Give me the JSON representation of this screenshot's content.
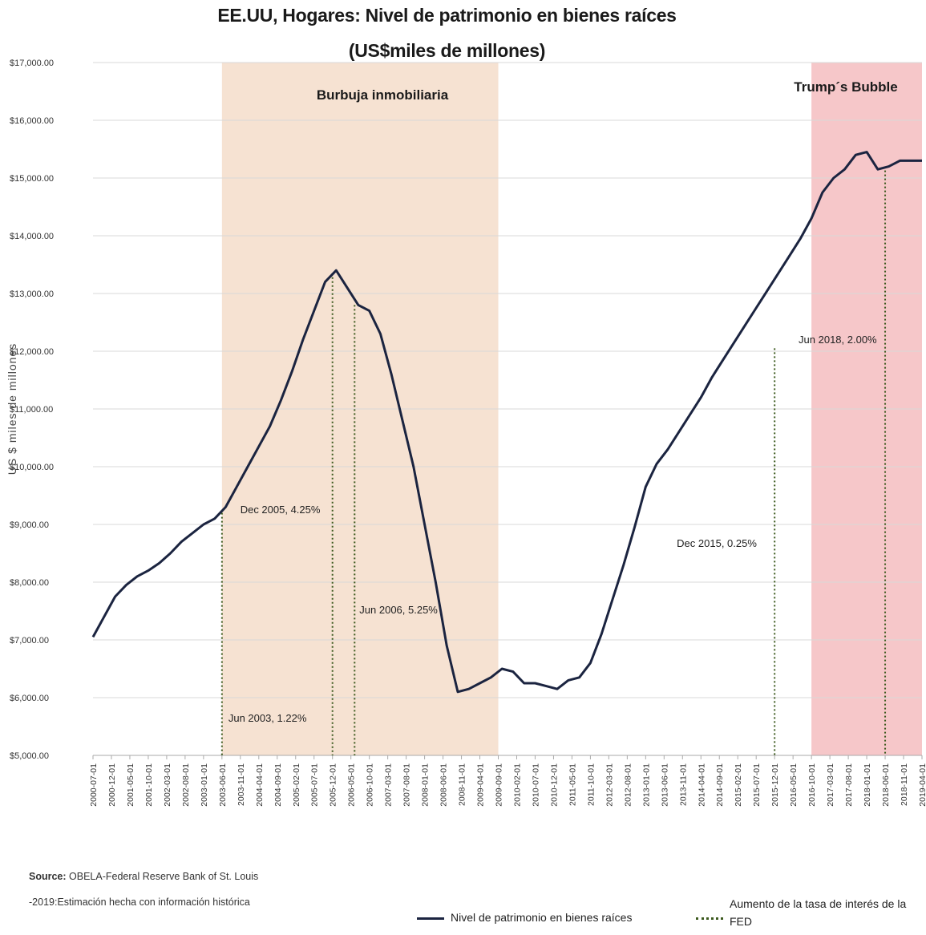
{
  "chart_data": {
    "type": "line",
    "title": "EE.UU, Hogares:  Nivel de patrimonio  en bienes raíces",
    "subtitle": "(US$miles de millones)",
    "ylabel": "US $ miles de millones",
    "ylim": [
      5000,
      17000
    ],
    "yticks": [
      "$5,000.00",
      "$6,000.00",
      "$7,000.00",
      "$8,000.00",
      "$9,000.00",
      "$10,000.00",
      "$11,000.00",
      "$12,000.00",
      "$13,000.00",
      "$14,000.00",
      "$15,000.00",
      "$16,000.00",
      "$17,000.00"
    ],
    "ytick_values": [
      5000,
      6000,
      7000,
      8000,
      9000,
      10000,
      11000,
      12000,
      13000,
      14000,
      15000,
      16000,
      17000
    ],
    "xticks": [
      "2000-07-01",
      "2000-12-01",
      "2001-05-01",
      "2001-10-01",
      "2002-03-01",
      "2002-08-01",
      "2003-01-01",
      "2003-06-01",
      "2003-11-01",
      "2004-04-01",
      "2004-09-01",
      "2005-02-01",
      "2005-07-01",
      "2005-12-01",
      "2006-05-01",
      "2006-10-01",
      "2007-03-01",
      "2007-08-01",
      "2008-01-01",
      "2008-06-01",
      "2008-11-01",
      "2009-04-01",
      "2009-09-01",
      "2010-02-01",
      "2010-07-01",
      "2010-12-01",
      "2011-05-01",
      "2011-10-01",
      "2012-03-01",
      "2012-08-01",
      "2013-01-01",
      "2013-06-01",
      "2013-11-01",
      "2014-04-01",
      "2014-09-01",
      "2015-02-01",
      "2015-07-01",
      "2015-12-01",
      "2016-05-01",
      "2016-10-01",
      "2017-03-01",
      "2017-08-01",
      "2018-01-01",
      "2018-06-01",
      "2018-11-01",
      "2019-04-01"
    ],
    "grid": true,
    "shaded_regions": [
      {
        "label": "Burbuja inmobiliaria",
        "start": "2003-06-01",
        "end": "2009-09-01",
        "color": "#f6e2d2"
      },
      {
        "label": "Trump´s Bubble",
        "start": "2016-10-01",
        "end": "2019-04-01",
        "color": "#f6c7c9"
      }
    ],
    "series": [
      {
        "name": "Nivel de patrimonio en bienes raíces",
        "color": "#1b2440",
        "x": [
          "2000-07-01",
          "2000-10-01",
          "2001-01-01",
          "2001-04-01",
          "2001-07-01",
          "2001-10-01",
          "2002-01-01",
          "2002-04-01",
          "2002-07-01",
          "2002-10-01",
          "2003-01-01",
          "2003-04-01",
          "2003-07-01",
          "2003-10-01",
          "2004-01-01",
          "2004-04-01",
          "2004-07-01",
          "2004-10-01",
          "2005-01-01",
          "2005-04-01",
          "2005-07-01",
          "2005-10-01",
          "2006-01-01",
          "2006-04-01",
          "2006-07-01",
          "2006-10-01",
          "2007-01-01",
          "2007-04-01",
          "2007-07-01",
          "2007-10-01",
          "2008-01-01",
          "2008-04-01",
          "2008-07-01",
          "2008-10-01",
          "2009-01-01",
          "2009-04-01",
          "2009-07-01",
          "2009-10-01",
          "2010-01-01",
          "2010-04-01",
          "2010-07-01",
          "2010-10-01",
          "2011-01-01",
          "2011-04-01",
          "2011-07-01",
          "2011-10-01",
          "2012-01-01",
          "2012-04-01",
          "2012-07-01",
          "2012-10-01",
          "2013-01-01",
          "2013-04-01",
          "2013-07-01",
          "2013-10-01",
          "2014-01-01",
          "2014-04-01",
          "2014-07-01",
          "2014-10-01",
          "2015-01-01",
          "2015-04-01",
          "2015-07-01",
          "2015-10-01",
          "2016-01-01",
          "2016-04-01",
          "2016-07-01",
          "2016-10-01",
          "2017-01-01",
          "2017-04-01",
          "2017-07-01",
          "2017-10-01",
          "2018-01-01",
          "2018-04-01",
          "2018-07-01",
          "2018-10-01",
          "2019-01-01",
          "2019-04-01"
        ],
        "values": [
          7050,
          7400,
          7750,
          7950,
          8100,
          8200,
          8330,
          8500,
          8700,
          8850,
          9000,
          9100,
          9300,
          9650,
          10000,
          10350,
          10700,
          11150,
          11650,
          12200,
          12700,
          13200,
          13400,
          13100,
          12800,
          12700,
          12300,
          11600,
          10800,
          10000,
          9000,
          8000,
          6900,
          6100,
          6150,
          6250,
          6350,
          6500,
          6450,
          6250,
          6250,
          6200,
          6150,
          6300,
          6350,
          6600,
          7100,
          7700,
          8300,
          8950,
          9650,
          10050,
          10300,
          10600,
          10900,
          11200,
          11550,
          11850,
          12150,
          12450,
          12750,
          13050,
          13350,
          13650,
          13950,
          14300,
          14750,
          15000,
          15150,
          15400,
          15450,
          15150,
          15200,
          15300,
          15300,
          15300
        ]
      }
    ],
    "fed_hikes": [
      {
        "label": "Jun 2003, 1.22%",
        "date": "2003-06-01",
        "value": 9200
      },
      {
        "label": "Dec 2005, 4.25%",
        "date": "2005-12-01",
        "value": 13350
      },
      {
        "label": "Jun 2006, 5.25%",
        "date": "2006-06-01",
        "value": 12800
      },
      {
        "label": "Dec 2015, 0.25%",
        "date": "2015-12-01",
        "value": 12050
      },
      {
        "label": "Jun 2018, 2.00%",
        "date": "2018-06-01",
        "value": 15200
      }
    ],
    "legend": {
      "series_label": "Nivel de patrimonio en bienes raíces",
      "fed_label": "Aumento de la tasa de interés de la FED",
      "placement": "bottom-right"
    }
  },
  "source": {
    "line1_bold": "Source:",
    "line1_rest": " OBELA-Federal Reserve Bank of St. Louis",
    "line2": "-2019:Estimación hecha con información histórica"
  }
}
